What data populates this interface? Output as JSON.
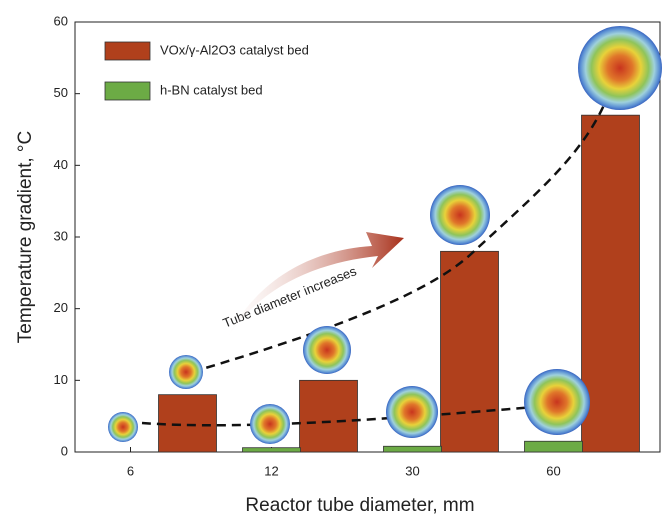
{
  "chart_data": {
    "type": "bar",
    "categories": [
      "6",
      "12",
      "30",
      "60"
    ],
    "series": [
      {
        "name": "VOx/γ-Al2O3 catalyst bed",
        "color": "#b0401c",
        "values": [
          8,
          10,
          28,
          47
        ]
      },
      {
        "name": "h-BN catalyst bed",
        "color": "#6cab45",
        "values": [
          0,
          0.6,
          0.8,
          1.5
        ]
      }
    ],
    "xlabel": "Reactor tube diameter, mm",
    "ylabel": "Temperature gradient, °C",
    "annotation": "Tube diameter increases",
    "ylim": [
      0,
      60
    ],
    "yticks": [
      0,
      10,
      20,
      30,
      40,
      50,
      60
    ],
    "legend": "upper left"
  }
}
